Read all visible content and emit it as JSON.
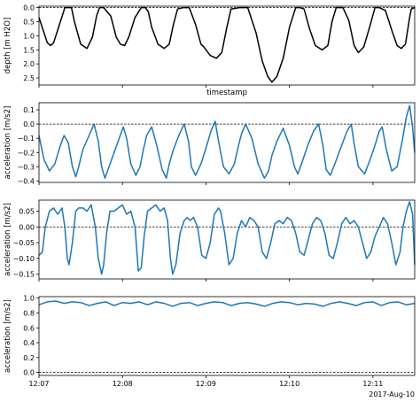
{
  "chart_data": [
    {
      "type": "line",
      "ylabel": "depth [m H2O]",
      "xlabel": "timestamp",
      "ylim": [
        2.75,
        -0.05
      ],
      "inverted_y": true,
      "yticks": [
        "0.0",
        "0.5",
        "1.0",
        "1.5",
        "2.0",
        "2.5"
      ],
      "ytick_values": [
        0,
        0.5,
        1.0,
        1.5,
        2.0,
        2.5
      ],
      "zero_line": true,
      "line_color": "#000000",
      "series": [
        {
          "x": [
            0,
            0.1,
            0.2,
            0.28,
            0.35,
            0.5,
            0.62,
            0.72,
            0.78,
            0.85,
            1.0,
            1.15,
            1.28,
            1.38,
            1.45,
            1.55,
            1.72,
            1.85,
            1.95,
            2.05,
            2.15,
            2.3,
            2.45,
            2.55,
            2.62,
            2.7,
            2.85,
            3.0,
            3.12,
            3.22,
            3.32,
            3.45,
            3.6,
            3.75,
            3.88,
            3.95,
            4.1,
            4.25,
            4.38,
            4.5,
            4.6,
            4.8,
            5.0,
            5.2,
            5.35,
            5.48,
            5.58,
            5.7,
            5.85,
            6.0,
            6.15,
            6.25,
            6.35,
            6.48,
            6.62,
            6.78,
            6.92,
            7.02,
            7.12,
            7.28,
            7.42,
            7.55,
            7.65,
            7.78,
            7.92,
            8.05,
            8.15,
            8.3,
            8.45,
            8.58,
            8.68,
            8.78,
            8.88,
            8.92,
            9.0
          ],
          "y": [
            0.35,
            0.8,
            1.25,
            1.35,
            1.25,
            0.55,
            0.0,
            0.0,
            0.0,
            0.5,
            1.3,
            1.45,
            1.05,
            0.3,
            0.0,
            0.0,
            0.3,
            1.05,
            1.3,
            1.35,
            1.05,
            0.35,
            0.0,
            0.0,
            0.15,
            0.7,
            1.3,
            1.45,
            1.3,
            0.6,
            0.05,
            0.0,
            0.0,
            0.6,
            1.3,
            1.4,
            1.7,
            1.8,
            1.6,
            0.7,
            0.05,
            0.0,
            0.0,
            0.9,
            1.9,
            2.45,
            2.65,
            2.45,
            1.8,
            0.7,
            0.0,
            0.0,
            0.05,
            0.75,
            1.35,
            1.5,
            1.35,
            0.5,
            0.0,
            0.0,
            0.45,
            1.35,
            1.6,
            1.4,
            0.7,
            0.0,
            0.0,
            0.1,
            0.8,
            1.35,
            1.45,
            1.3,
            0.35,
            0.05,
            0.0
          ]
        }
      ]
    },
    {
      "type": "line",
      "ylabel": "acceleration [m/s2]",
      "ylim": [
        -0.41,
        0.15
      ],
      "yticks": [
        "−0.4",
        "−0.3",
        "−0.2",
        "−0.1",
        "0.0",
        "0.1"
      ],
      "ytick_values": [
        -0.4,
        -0.3,
        -0.2,
        -0.1,
        0.0,
        0.1
      ],
      "zero_line": true,
      "line_color": "#1f77b4",
      "series": [
        {
          "x": [
            0,
            0.12,
            0.25,
            0.38,
            0.5,
            0.6,
            0.7,
            0.8,
            0.88,
            0.95,
            1.05,
            1.2,
            1.32,
            1.42,
            1.5,
            1.58,
            1.68,
            1.8,
            1.92,
            2.02,
            2.1,
            2.2,
            2.32,
            2.42,
            2.5,
            2.58,
            2.7,
            2.82,
            2.95,
            3.05,
            3.12,
            3.22,
            3.35,
            3.48,
            3.58,
            3.65,
            3.75,
            3.88,
            4.0,
            4.12,
            4.22,
            4.3,
            4.42,
            4.55,
            4.68,
            4.78,
            4.85,
            4.95,
            5.1,
            5.25,
            5.4,
            5.5,
            5.58,
            5.7,
            5.85,
            6.0,
            6.12,
            6.2,
            6.3,
            6.45,
            6.58,
            6.7,
            6.8,
            6.88,
            6.98,
            7.1,
            7.25,
            7.38,
            7.48,
            7.55,
            7.65,
            7.8,
            7.92,
            8.05,
            8.15,
            8.22,
            8.32,
            8.45,
            8.58,
            8.7,
            8.8,
            8.88,
            8.95,
            9.0
          ],
          "y": [
            -0.08,
            -0.25,
            -0.33,
            -0.28,
            -0.16,
            -0.08,
            -0.13,
            -0.3,
            -0.37,
            -0.3,
            -0.18,
            -0.08,
            0.0,
            -0.12,
            -0.3,
            -0.38,
            -0.3,
            -0.2,
            -0.1,
            -0.02,
            -0.1,
            -0.28,
            -0.36,
            -0.3,
            -0.18,
            -0.08,
            -0.02,
            -0.15,
            -0.32,
            -0.38,
            -0.28,
            -0.18,
            -0.08,
            0.0,
            -0.12,
            -0.3,
            -0.36,
            -0.28,
            -0.17,
            -0.05,
            0.02,
            -0.12,
            -0.3,
            -0.35,
            -0.28,
            -0.15,
            -0.07,
            0.0,
            -0.1,
            -0.28,
            -0.38,
            -0.33,
            -0.22,
            -0.12,
            -0.03,
            -0.15,
            -0.3,
            -0.35,
            -0.27,
            -0.14,
            -0.05,
            0.0,
            -0.15,
            -0.32,
            -0.36,
            -0.27,
            -0.15,
            -0.05,
            0.0,
            -0.14,
            -0.3,
            -0.35,
            -0.26,
            -0.15,
            -0.05,
            -0.02,
            -0.18,
            -0.33,
            -0.3,
            -0.12,
            0.05,
            0.13,
            -0.02,
            -0.2
          ]
        }
      ]
    },
    {
      "type": "line",
      "ylabel": "acceleration [m/s2]",
      "ylim": [
        -0.165,
        0.085
      ],
      "yticks": [
        "−0.15",
        "−0.10",
        "−0.05",
        "0.00",
        "0.05"
      ],
      "ytick_values": [
        -0.15,
        -0.1,
        -0.05,
        0.0,
        0.05
      ],
      "zero_line": true,
      "line_color": "#1f77b4",
      "series": [
        {
          "x": [
            0,
            0.08,
            0.15,
            0.25,
            0.35,
            0.45,
            0.55,
            0.62,
            0.68,
            0.72,
            0.8,
            0.88,
            0.95,
            1.05,
            1.15,
            1.25,
            1.35,
            1.42,
            1.5,
            1.55,
            1.62,
            1.7,
            1.8,
            1.9,
            2.0,
            2.1,
            2.2,
            2.3,
            2.38,
            2.45,
            2.52,
            2.6,
            2.7,
            2.8,
            2.9,
            3.0,
            3.08,
            3.15,
            3.2,
            3.28,
            3.38,
            3.48,
            3.55,
            3.62,
            3.7,
            3.8,
            3.9,
            4.0,
            4.1,
            4.2,
            4.3,
            4.35,
            4.45,
            4.55,
            4.65,
            4.75,
            4.85,
            4.95,
            5.05,
            5.15,
            5.25,
            5.35,
            5.45,
            5.55,
            5.65,
            5.75,
            5.85,
            5.95,
            6.05,
            6.15,
            6.25,
            6.35,
            6.45,
            6.55,
            6.65,
            6.75,
            6.85,
            6.95,
            7.05,
            7.15,
            7.25,
            7.35,
            7.45,
            7.55,
            7.65,
            7.75,
            7.85,
            7.95,
            8.05,
            8.15,
            8.25,
            8.35,
            8.45,
            8.55,
            8.65,
            8.72,
            8.8,
            8.88,
            8.95,
            9.0
          ],
          "y": [
            -0.09,
            -0.08,
            0.0,
            0.05,
            0.06,
            0.04,
            0.06,
            0.0,
            -0.1,
            -0.12,
            -0.05,
            0.05,
            0.06,
            0.06,
            0.05,
            0.07,
            0.0,
            -0.1,
            -0.15,
            -0.12,
            -0.02,
            0.05,
            0.05,
            0.06,
            0.07,
            0.04,
            0.05,
            0.0,
            -0.14,
            -0.13,
            -0.03,
            0.05,
            0.06,
            0.07,
            0.05,
            0.06,
            0.02,
            -0.1,
            -0.15,
            -0.12,
            -0.02,
            0.02,
            0.03,
            0.02,
            0.03,
            0.0,
            -0.09,
            -0.1,
            -0.05,
            0.04,
            0.06,
            0.05,
            -0.02,
            -0.12,
            -0.1,
            -0.02,
            0.02,
            0.0,
            0.03,
            0.02,
            0.0,
            -0.08,
            -0.1,
            -0.05,
            0.01,
            0.02,
            0.01,
            0.03,
            0.02,
            -0.02,
            -0.08,
            -0.09,
            -0.04,
            0.01,
            0.03,
            0.02,
            -0.02,
            -0.09,
            -0.1,
            -0.05,
            0.01,
            0.03,
            0.01,
            0.02,
            0.0,
            -0.05,
            -0.1,
            -0.08,
            -0.03,
            0.0,
            0.03,
            0.01,
            -0.05,
            -0.12,
            -0.08,
            0.0,
            0.05,
            0.08,
            0.04,
            -0.12
          ]
        }
      ]
    },
    {
      "type": "line",
      "ylabel": "acceleration [m/s2]",
      "xlabel": "",
      "ylim": [
        -0.04,
        1.02
      ],
      "yticks": [
        "0.0",
        "0.2",
        "0.4",
        "0.6",
        "0.8",
        "1.0"
      ],
      "ytick_values": [
        0.0,
        0.2,
        0.4,
        0.6,
        0.8,
        1.0
      ],
      "zero_line": true,
      "line_color": "#1f77b4",
      "xticks": [
        "12:07",
        "12:08",
        "12:09",
        "12:10",
        "12:11"
      ],
      "xtick_values": [
        0,
        2,
        4,
        6,
        8
      ],
      "x_offset_label": "2017-Aug-10",
      "series": [
        {
          "x": [
            0,
            0.2,
            0.4,
            0.6,
            0.8,
            1.0,
            1.2,
            1.4,
            1.6,
            1.8,
            2.0,
            2.2,
            2.4,
            2.6,
            2.8,
            3.0,
            3.2,
            3.4,
            3.6,
            3.8,
            4.0,
            4.2,
            4.4,
            4.6,
            4.8,
            5.0,
            5.2,
            5.4,
            5.6,
            5.8,
            6.0,
            6.2,
            6.4,
            6.6,
            6.8,
            7.0,
            7.2,
            7.4,
            7.6,
            7.8,
            8.0,
            8.2,
            8.4,
            8.6,
            8.8,
            9.0
          ],
          "y": [
            0.91,
            0.95,
            0.96,
            0.93,
            0.95,
            0.94,
            0.9,
            0.93,
            0.95,
            0.9,
            0.94,
            0.93,
            0.95,
            0.91,
            0.95,
            0.93,
            0.89,
            0.93,
            0.94,
            0.9,
            0.93,
            0.95,
            0.94,
            0.9,
            0.93,
            0.94,
            0.92,
            0.89,
            0.93,
            0.95,
            0.94,
            0.91,
            0.93,
            0.92,
            0.89,
            0.93,
            0.95,
            0.93,
            0.9,
            0.94,
            0.95,
            0.9,
            0.94,
            0.95,
            0.91,
            0.93
          ]
        }
      ]
    }
  ]
}
